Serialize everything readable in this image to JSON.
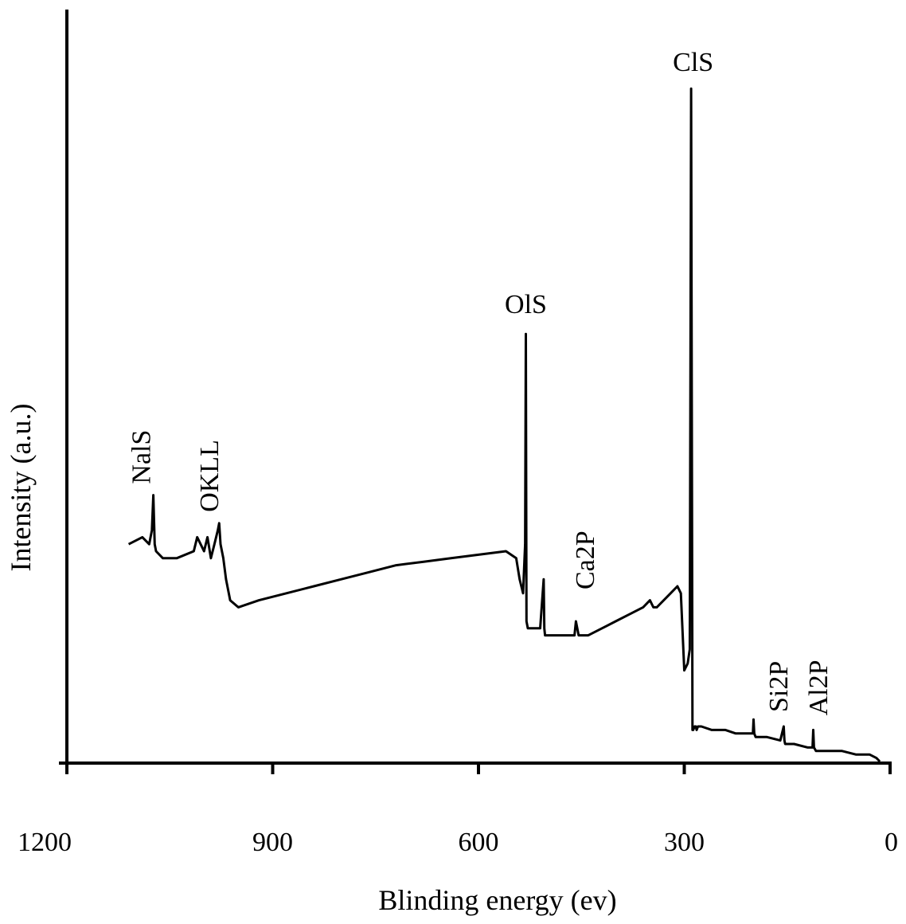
{
  "chart_data": {
    "type": "line",
    "title": "",
    "xlabel": "Blinding energy (ev)",
    "ylabel": "Intensity (a.u.)",
    "xlim": [
      1200,
      0
    ],
    "ylim": [
      0,
      100
    ],
    "x_reversed": true,
    "x_ticks": [
      "1200",
      "900",
      "600",
      "300",
      "0"
    ],
    "x_tick_values": [
      1200,
      900,
      600,
      300,
      0
    ],
    "y_ticks": [],
    "grid": false,
    "legend": "none",
    "series": [
      {
        "x": [
          1110,
          1090,
          1080,
          1076,
          1074,
          1072,
          1070,
          1060,
          1040,
          1015,
          1010,
          1005,
          1000,
          995,
          990,
          985,
          980,
          978,
          976,
          972,
          968,
          962,
          950,
          920,
          880,
          840,
          800,
          760,
          720,
          680,
          640,
          600,
          560,
          545,
          540,
          535,
          532,
          531,
          530,
          528,
          520,
          510,
          505,
          504,
          503,
          500,
          490,
          470,
          460,
          458,
          456,
          454,
          440,
          420,
          400,
          380,
          360,
          350,
          345,
          340,
          320,
          310,
          305,
          300,
          295,
          292,
          290,
          288,
          287,
          285,
          283,
          282,
          280,
          275,
          260,
          240,
          225,
          200,
          199,
          198,
          196,
          180,
          160,
          155,
          154,
          153,
          150,
          140,
          120,
          113,
          112,
          111,
          108,
          90,
          70,
          50,
          40,
          30,
          20,
          15
        ],
        "y": [
          31,
          32,
          31,
          33,
          38,
          31,
          30,
          29,
          29,
          30,
          32,
          31,
          30,
          32,
          29,
          31,
          33,
          34,
          31,
          29,
          26,
          23,
          22,
          23,
          24,
          25,
          26,
          27,
          28,
          28.5,
          29,
          29.5,
          30,
          29,
          26,
          24,
          31,
          61,
          20,
          19,
          19,
          19,
          26,
          19,
          18,
          18,
          18,
          18,
          18,
          20,
          19,
          18,
          18,
          19,
          20,
          21,
          22,
          23,
          22,
          22,
          24,
          25,
          24,
          13,
          14,
          16,
          96,
          4.5,
          4.5,
          5,
          5,
          4.5,
          5,
          5,
          4.5,
          4.5,
          4,
          4,
          6,
          4,
          3.5,
          3.5,
          3,
          5,
          3,
          2.5,
          2.5,
          2.5,
          2,
          2,
          4.5,
          2,
          1.5,
          1.5,
          1.5,
          1,
          1,
          1,
          0.5,
          0
        ]
      }
    ],
    "annotations": [
      {
        "text": "NalS",
        "x": 1072,
        "rotated": true
      },
      {
        "text": "OKLL",
        "x": 975,
        "rotated": true
      },
      {
        "text": "OlS",
        "x": 531,
        "rotated": false
      },
      {
        "text": "ClS",
        "x": 287,
        "rotated": false
      },
      {
        "text": "Ca2P",
        "x": 455,
        "rotated": true
      },
      {
        "text": "Si2P",
        "x": 150,
        "rotated": true
      },
      {
        "text": "Al2P",
        "x": 108,
        "rotated": true
      }
    ]
  }
}
